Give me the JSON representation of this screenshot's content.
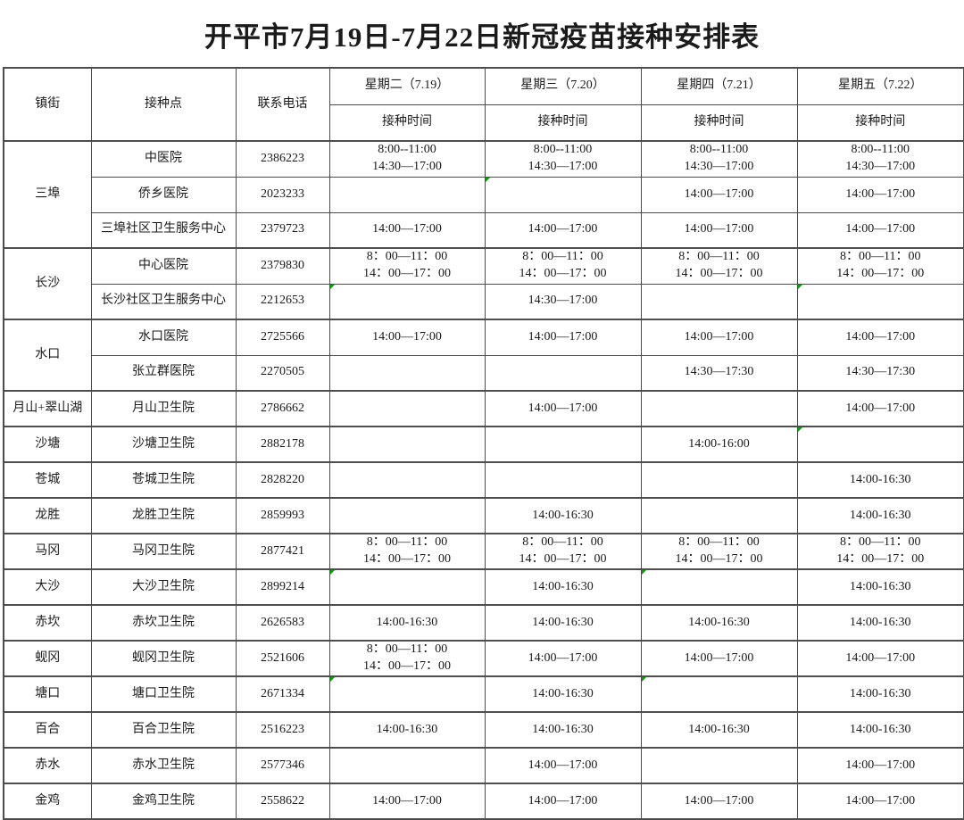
{
  "title": "开平市7月19日-7月22日新冠疫苗接种安排表",
  "colors": {
    "background": "#ffffff",
    "text": "#1a1a1a",
    "border": "#4d4d4d",
    "marker_green": "#00a000"
  },
  "table": {
    "headers": {
      "town": "镇街",
      "site": "接种点",
      "phone": "联系电话",
      "days": [
        {
          "label": "星期二（7.19）",
          "sublabel": "接种时间"
        },
        {
          "label": "星期三（7.20）",
          "sublabel": "接种时间"
        },
        {
          "label": "星期四（7.21）",
          "sublabel": "接种时间"
        },
        {
          "label": "星期五（7.22）",
          "sublabel": "接种时间"
        }
      ]
    },
    "rows": [
      {
        "town": "三埠",
        "town_span": 3,
        "group_start": true,
        "site": "中医院",
        "phone": "2386223",
        "times": [
          [
            "8:00--11:00",
            "14:30—17:00"
          ],
          [
            "8:00--11:00",
            "14:30—17:00"
          ],
          [
            "8:00--11:00",
            "14:30—17:00"
          ],
          [
            "8:00--11:00",
            "14:30—17:00"
          ]
        ],
        "marks": []
      },
      {
        "town": null,
        "group_start": false,
        "site": "侨乡医院",
        "phone": "2023233",
        "times": [
          [],
          [],
          [
            "14:00—17:00"
          ],
          [
            "14:00—17:00"
          ]
        ],
        "marks": [
          1
        ]
      },
      {
        "town": null,
        "group_start": false,
        "site": "三埠社区卫生服务中心",
        "phone": "2379723",
        "times": [
          [
            "14:00—17:00"
          ],
          [
            "14:00—17:00"
          ],
          [
            "14:00—17:00"
          ],
          [
            "14:00—17:00"
          ]
        ],
        "marks": []
      },
      {
        "town": "长沙",
        "town_span": 2,
        "group_start": true,
        "site": "中心医院",
        "phone": "2379830",
        "times": [
          [
            "8：00—11：00",
            "14：00—17：00"
          ],
          [
            "8：00—11：00",
            "14：00—17：00"
          ],
          [
            "8：00—11：00",
            "14：00—17：00"
          ],
          [
            "8：00—11：00",
            "14：00—17：00"
          ]
        ],
        "marks": []
      },
      {
        "town": null,
        "group_start": false,
        "site": "长沙社区卫生服务中心",
        "phone": "2212653",
        "times": [
          [],
          [
            "14:30—17:00"
          ],
          [],
          []
        ],
        "marks": [
          0,
          3
        ]
      },
      {
        "town": "水口",
        "town_span": 2,
        "group_start": true,
        "site": "水口医院",
        "phone": "2725566",
        "times": [
          [
            "14:00—17:00"
          ],
          [
            "14:00—17:00"
          ],
          [
            "14:00—17:00"
          ],
          [
            "14:00—17:00"
          ]
        ],
        "marks": []
      },
      {
        "town": null,
        "group_start": false,
        "site": "张立群医院",
        "phone": "2270505",
        "times": [
          [],
          [],
          [
            "14:30—17:30"
          ],
          [
            "14:30—17:30"
          ]
        ],
        "marks": []
      },
      {
        "town": "月山+翠山湖",
        "town_span": 1,
        "group_start": true,
        "site": "月山卫生院",
        "phone": "2786662",
        "times": [
          [],
          [
            "14:00—17:00"
          ],
          [],
          [
            "14:00—17:00"
          ]
        ],
        "marks": []
      },
      {
        "town": "沙塘",
        "town_span": 1,
        "group_start": true,
        "site": "沙塘卫生院",
        "phone": "2882178",
        "times": [
          [],
          [],
          [
            "14:00-16:00"
          ],
          []
        ],
        "marks": [
          3
        ]
      },
      {
        "town": "苍城",
        "town_span": 1,
        "group_start": true,
        "site": "苍城卫生院",
        "phone": "2828220",
        "times": [
          [],
          [],
          [],
          [
            "14:00-16:30"
          ]
        ],
        "marks": []
      },
      {
        "town": "龙胜",
        "town_span": 1,
        "group_start": true,
        "site": "龙胜卫生院",
        "phone": "2859993",
        "times": [
          [],
          [
            "14:00-16:30"
          ],
          [],
          [
            "14:00-16:30"
          ]
        ],
        "marks": []
      },
      {
        "town": "马冈",
        "town_span": 1,
        "group_start": true,
        "site": "马冈卫生院",
        "phone": "2877421",
        "times": [
          [
            "8：00—11：00",
            "14：00—17：00"
          ],
          [
            "8：00—11：00",
            "14：00—17：00"
          ],
          [
            "8：00—11：00",
            "14：00—17：00"
          ],
          [
            "8：00—11：00",
            "14：00—17：00"
          ]
        ],
        "marks": []
      },
      {
        "town": "大沙",
        "town_span": 1,
        "group_start": true,
        "site": "大沙卫生院",
        "phone": "2899214",
        "times": [
          [],
          [
            "14:00-16:30"
          ],
          [],
          [
            "14:00-16:30"
          ]
        ],
        "marks": [
          0,
          2
        ]
      },
      {
        "town": "赤坎",
        "town_span": 1,
        "group_start": true,
        "site": "赤坎卫生院",
        "phone": "2626583",
        "times": [
          [
            "14:00-16:30"
          ],
          [
            "14:00-16:30"
          ],
          [
            "14:00-16:30"
          ],
          [
            "14:00-16:30"
          ]
        ],
        "marks": []
      },
      {
        "town": "蚬冈",
        "town_span": 1,
        "group_start": true,
        "site": "蚬冈卫生院",
        "phone": "2521606",
        "times": [
          [
            "8：00—11：00",
            "14：00—17：00"
          ],
          [
            "14:00—17:00"
          ],
          [
            "14:00—17:00"
          ],
          [
            "14:00—17:00"
          ]
        ],
        "marks": []
      },
      {
        "town": "塘口",
        "town_span": 1,
        "group_start": true,
        "site": "塘口卫生院",
        "phone": "2671334",
        "times": [
          [],
          [
            "14:00-16:30"
          ],
          [],
          [
            "14:00-16:30"
          ]
        ],
        "marks": [
          0,
          2
        ]
      },
      {
        "town": "百合",
        "town_span": 1,
        "group_start": true,
        "site": "百合卫生院",
        "phone": "2516223",
        "times": [
          [
            "14:00-16:30"
          ],
          [
            "14:00-16:30"
          ],
          [
            "14:00-16:30"
          ],
          [
            "14:00-16:30"
          ]
        ],
        "marks": []
      },
      {
        "town": "赤水",
        "town_span": 1,
        "group_start": true,
        "site": "赤水卫生院",
        "phone": "2577346",
        "times": [
          [],
          [
            "14:00—17:00"
          ],
          [],
          [
            "14:00—17:00"
          ]
        ],
        "marks": []
      },
      {
        "town": "金鸡",
        "town_span": 1,
        "group_start": true,
        "site": "金鸡卫生院",
        "phone": "2558622",
        "times": [
          [
            "14:00—17:00"
          ],
          [
            "14:00—17:00"
          ],
          [
            "14:00—17:00"
          ],
          [
            "14:00—17:00"
          ]
        ],
        "marks": []
      }
    ]
  }
}
